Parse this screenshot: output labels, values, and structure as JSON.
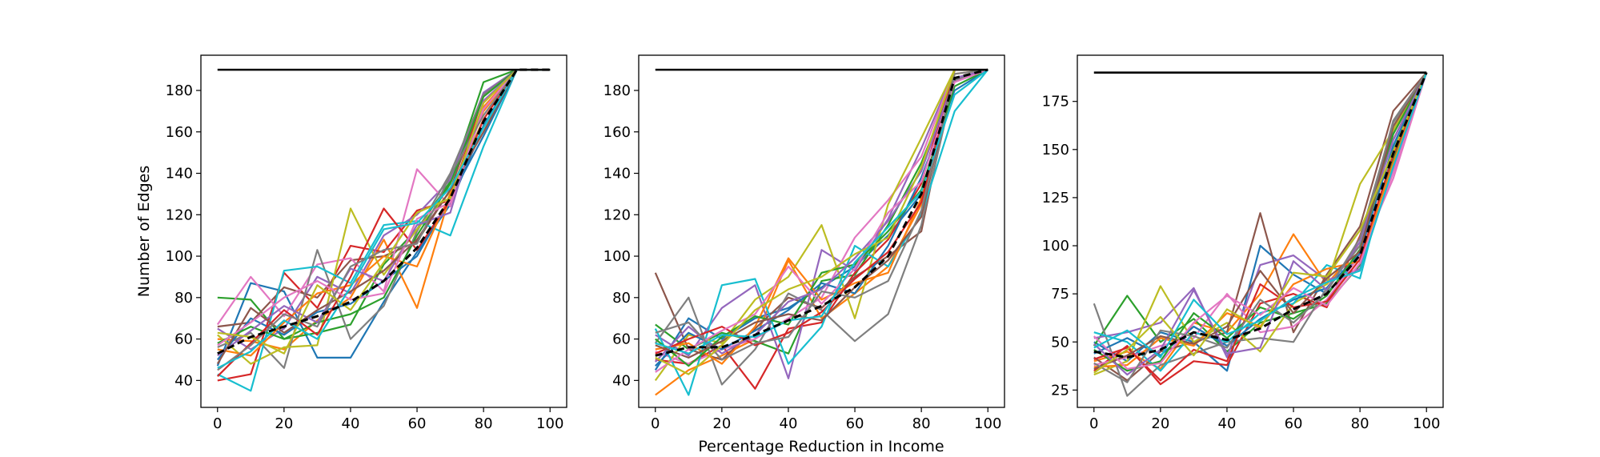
{
  "figure": {
    "ylabel": "Number of Edges",
    "xlabel": "Percentage Reduction in Income"
  },
  "chart_data": [
    {
      "type": "line",
      "xlim": [
        -5,
        105
      ],
      "ylim": [
        27,
        197
      ],
      "xticks": [
        0,
        20,
        40,
        60,
        80,
        100
      ],
      "yticks": [
        40,
        60,
        80,
        100,
        120,
        140,
        160,
        180
      ],
      "x": [
        0,
        10,
        20,
        30,
        40,
        50,
        60,
        70,
        80,
        90,
        100
      ],
      "reference_line": {
        "color": "#000000",
        "x": [
          0,
          100
        ],
        "y": [
          190,
          190
        ]
      },
      "mean_series": {
        "color": "#000000",
        "dashed": true,
        "y": [
          53,
          61,
          66,
          71,
          78,
          88,
          104,
          128,
          165,
          190,
          190
        ]
      },
      "series": [
        {
          "color": "#1f77b4",
          "y": [
            47,
            87,
            83,
            51,
            51,
            78,
            102,
            125,
            163,
            190,
            190
          ]
        },
        {
          "color": "#ff7f0e",
          "y": [
            60,
            59,
            55,
            69,
            80,
            108,
            75,
            130,
            172,
            190,
            190
          ]
        },
        {
          "color": "#2ca02c",
          "y": [
            80,
            79,
            60,
            63,
            67,
            96,
            113,
            136,
            184,
            190,
            190
          ]
        },
        {
          "color": "#d62728",
          "y": [
            40,
            43,
            92,
            75,
            105,
            102,
            122,
            127,
            178,
            190,
            190
          ]
        },
        {
          "color": "#9467bd",
          "y": [
            65,
            55,
            65,
            90,
            82,
            110,
            120,
            137,
            179,
            190,
            190
          ]
        },
        {
          "color": "#8c564b",
          "y": [
            66,
            68,
            85,
            80,
            98,
            100,
            107,
            132,
            178,
            190,
            190
          ]
        },
        {
          "color": "#e377c2",
          "y": [
            67,
            90,
            71,
            96,
            99,
            83,
            142,
            124,
            174,
            190,
            190
          ]
        },
        {
          "color": "#7f7f7f",
          "y": [
            56,
            63,
            46,
            103,
            60,
            76,
            112,
            140,
            178,
            190,
            190
          ]
        },
        {
          "color": "#bcbd22",
          "y": [
            62,
            48,
            56,
            57,
            123,
            91,
            113,
            131,
            166,
            190,
            190
          ]
        },
        {
          "color": "#17becf",
          "y": [
            43,
            35,
            93,
            95,
            87,
            115,
            117,
            110,
            153,
            190,
            190
          ]
        },
        {
          "color": "#1f77b4",
          "y": [
            50,
            70,
            62,
            73,
            77,
            88,
            100,
            128,
            158,
            190,
            190
          ]
        },
        {
          "color": "#ff7f0e",
          "y": [
            55,
            52,
            68,
            82,
            86,
            100,
            95,
            130,
            170,
            190,
            190
          ]
        },
        {
          "color": "#2ca02c",
          "y": [
            58,
            66,
            60,
            68,
            72,
            80,
            110,
            135,
            177,
            190,
            190
          ]
        },
        {
          "color": "#d62728",
          "y": [
            42,
            58,
            74,
            62,
            90,
            123,
            103,
            127,
            166,
            190,
            190
          ]
        },
        {
          "color": "#9467bd",
          "y": [
            52,
            64,
            76,
            68,
            94,
            88,
            115,
            121,
            175,
            190,
            190
          ]
        },
        {
          "color": "#8c564b",
          "y": [
            48,
            75,
            63,
            74,
            83,
            93,
            108,
            132,
            160,
            190,
            190
          ]
        },
        {
          "color": "#e377c2",
          "y": [
            57,
            68,
            80,
            88,
            79,
            82,
            118,
            126,
            171,
            190,
            190
          ]
        },
        {
          "color": "#7f7f7f",
          "y": [
            45,
            57,
            72,
            66,
            95,
            103,
            106,
            139,
            168,
            190,
            190
          ]
        },
        {
          "color": "#bcbd22",
          "y": [
            63,
            61,
            53,
            86,
            74,
            97,
            121,
            128,
            174,
            190,
            190
          ]
        },
        {
          "color": "#17becf",
          "y": [
            46,
            54,
            69,
            60,
            85,
            113,
            116,
            133,
            162,
            190,
            190
          ]
        }
      ]
    },
    {
      "type": "line",
      "xlim": [
        -5,
        105
      ],
      "ylim": [
        27,
        197
      ],
      "xticks": [
        0,
        20,
        40,
        60,
        80,
        100
      ],
      "yticks": [
        40,
        60,
        80,
        100,
        120,
        140,
        160,
        180
      ],
      "x": [
        0,
        10,
        20,
        30,
        40,
        50,
        60,
        70,
        80,
        90,
        100
      ],
      "reference_line": {
        "color": "#000000",
        "x": [
          0,
          100
        ],
        "y": [
          190,
          190
        ]
      },
      "mean_series": {
        "color": "#000000",
        "dashed": true,
        "y": [
          52,
          56,
          56,
          62,
          69,
          76,
          85,
          100,
          130,
          186,
          190
        ]
      },
      "series": [
        {
          "color": "#1f77b4",
          "y": [
            45,
            70,
            60,
            70,
            75,
            85,
            95,
            110,
            130,
            185,
            190
          ]
        },
        {
          "color": "#ff7f0e",
          "y": [
            33,
            45,
            52,
            60,
            98,
            70,
            82,
            95,
            125,
            190,
            190
          ]
        },
        {
          "color": "#2ca02c",
          "y": [
            67,
            55,
            63,
            59,
            53,
            88,
            91,
            115,
            145,
            185,
            190
          ]
        },
        {
          "color": "#d62728",
          "y": [
            50,
            48,
            57,
            36,
            65,
            68,
            92,
            108,
            135,
            190,
            190
          ]
        },
        {
          "color": "#9467bd",
          "y": [
            62,
            52,
            75,
            86,
            41,
            103,
            93,
            118,
            152,
            190,
            190
          ]
        },
        {
          "color": "#8c564b",
          "y": [
            92,
            55,
            50,
            65,
            80,
            75,
            90,
            100,
            112,
            190,
            190
          ]
        },
        {
          "color": "#e377c2",
          "y": [
            54,
            48,
            55,
            60,
            70,
            80,
            109,
            127,
            148,
            190,
            190
          ]
        },
        {
          "color": "#7f7f7f",
          "y": [
            58,
            80,
            38,
            55,
            82,
            74,
            59,
            72,
            115,
            185,
            190
          ]
        },
        {
          "color": "#bcbd22",
          "y": [
            40,
            62,
            58,
            79,
            90,
            115,
            70,
            125,
            157,
            190,
            190
          ]
        },
        {
          "color": "#17becf",
          "y": [
            65,
            33,
            86,
            89,
            48,
            66,
            105,
            95,
            120,
            170,
            190
          ]
        },
        {
          "color": "#1f77b4",
          "y": [
            47,
            63,
            55,
            64,
            74,
            87,
            82,
            105,
            138,
            180,
            190
          ]
        },
        {
          "color": "#ff7f0e",
          "y": [
            55,
            58,
            48,
            66,
            99,
            79,
            87,
            92,
            128,
            188,
            190
          ]
        },
        {
          "color": "#2ca02c",
          "y": [
            60,
            47,
            61,
            71,
            67,
            92,
            96,
            112,
            132,
            182,
            190
          ]
        },
        {
          "color": "#d62728",
          "y": [
            53,
            60,
            66,
            57,
            63,
            73,
            89,
            102,
            126,
            190,
            190
          ]
        },
        {
          "color": "#9467bd",
          "y": [
            49,
            66,
            53,
            62,
            78,
            84,
            99,
            117,
            141,
            186,
            190
          ]
        },
        {
          "color": "#8c564b",
          "y": [
            57,
            51,
            59,
            68,
            72,
            69,
            85,
            98,
            119,
            190,
            190
          ]
        },
        {
          "color": "#e377c2",
          "y": [
            44,
            55,
            64,
            72,
            95,
            77,
            94,
            121,
            136,
            184,
            190
          ]
        },
        {
          "color": "#7f7f7f",
          "y": [
            63,
            68,
            50,
            58,
            61,
            83,
            80,
            88,
            122,
            188,
            190
          ]
        },
        {
          "color": "#bcbd22",
          "y": [
            51,
            43,
            57,
            74,
            84,
            90,
            101,
            109,
            143,
            190,
            190
          ]
        },
        {
          "color": "#17becf",
          "y": [
            58,
            53,
            62,
            61,
            69,
            71,
            97,
            114,
            131,
            178,
            190
          ]
        }
      ]
    },
    {
      "type": "line",
      "xlim": [
        -5,
        105
      ],
      "ylim": [
        16,
        199
      ],
      "xticks": [
        0,
        20,
        40,
        60,
        80,
        100
      ],
      "yticks": [
        25,
        50,
        75,
        100,
        125,
        150,
        175
      ],
      "x": [
        0,
        10,
        20,
        30,
        40,
        50,
        60,
        70,
        80,
        90,
        100
      ],
      "reference_line": {
        "color": "#000000",
        "x": [
          0,
          100
        ],
        "y": [
          190,
          190
        ]
      },
      "mean_series": {
        "color": "#000000",
        "dashed": true,
        "y": [
          45,
          42,
          46,
          55,
          51,
          57,
          67,
          75,
          95,
          148,
          190
        ]
      },
      "series": [
        {
          "color": "#1f77b4",
          "y": [
            50,
            40,
            55,
            50,
            35,
            100,
            85,
            75,
            95,
            160,
            190
          ]
        },
        {
          "color": "#ff7f0e",
          "y": [
            40,
            45,
            36,
            60,
            55,
            75,
            106,
            80,
            100,
            150,
            190
          ]
        },
        {
          "color": "#2ca02c",
          "y": [
            48,
            74,
            50,
            62,
            45,
            60,
            65,
            70,
            90,
            145,
            190
          ]
        },
        {
          "color": "#d62728",
          "y": [
            35,
            48,
            28,
            40,
            38,
            70,
            75,
            68,
            105,
            155,
            190
          ]
        },
        {
          "color": "#9467bd",
          "y": [
            52,
            55,
            60,
            78,
            42,
            90,
            95,
            82,
            88,
            140,
            190
          ]
        },
        {
          "color": "#8c564b",
          "y": [
            42,
            30,
            45,
            50,
            55,
            117,
            55,
            85,
            110,
            170,
            190
          ]
        },
        {
          "color": "#e377c2",
          "y": [
            38,
            42,
            48,
            52,
            75,
            55,
            58,
            72,
            95,
            135,
            190
          ]
        },
        {
          "color": "#7f7f7f",
          "y": [
            70,
            22,
            38,
            44,
            50,
            52,
            50,
            78,
            100,
            165,
            190
          ]
        },
        {
          "color": "#bcbd22",
          "y": [
            33,
            40,
            79,
            50,
            60,
            45,
            70,
            80,
            132,
            160,
            190
          ]
        },
        {
          "color": "#17becf",
          "y": [
            55,
            50,
            35,
            55,
            50,
            65,
            70,
            90,
            83,
            150,
            190
          ]
        },
        {
          "color": "#1f77b4",
          "y": [
            44,
            52,
            43,
            58,
            48,
            62,
            72,
            78,
            96,
            152,
            190
          ]
        },
        {
          "color": "#ff7f0e",
          "y": [
            37,
            38,
            52,
            48,
            65,
            58,
            80,
            88,
            92,
            143,
            190
          ]
        },
        {
          "color": "#2ca02c",
          "y": [
            46,
            35,
            40,
            65,
            52,
            68,
            62,
            74,
            98,
            158,
            190
          ]
        },
        {
          "color": "#d62728",
          "y": [
            41,
            47,
            30,
            46,
            40,
            80,
            68,
            71,
            93,
            147,
            190
          ]
        },
        {
          "color": "#9467bd",
          "y": [
            49,
            33,
            46,
            77,
            44,
            47,
            92,
            77,
            102,
            155,
            190
          ]
        },
        {
          "color": "#8c564b",
          "y": [
            36,
            43,
            53,
            49,
            58,
            87,
            65,
            83,
            97,
            162,
            190
          ]
        },
        {
          "color": "#e377c2",
          "y": [
            53,
            36,
            39,
            60,
            74,
            64,
            78,
            69,
            91,
            138,
            190
          ]
        },
        {
          "color": "#7f7f7f",
          "y": [
            39,
            29,
            56,
            53,
            47,
            72,
            60,
            76,
            104,
            164,
            190
          ]
        },
        {
          "color": "#bcbd22",
          "y": [
            34,
            46,
            63,
            43,
            67,
            57,
            86,
            84,
            108,
            149,
            190
          ]
        },
        {
          "color": "#17becf",
          "y": [
            47,
            56,
            42,
            72,
            54,
            61,
            73,
            81,
            87,
            141,
            190
          ]
        }
      ]
    }
  ]
}
